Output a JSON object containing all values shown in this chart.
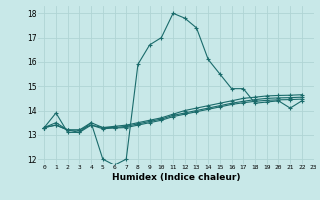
{
  "xlabel": "Humidex (Indice chaleur)",
  "ylabel": "",
  "background_color": "#c8e8e8",
  "grid_color": "#b0d4d4",
  "line_color": "#1a6b6b",
  "xlim": [
    -0.5,
    23
  ],
  "ylim": [
    11.8,
    18.3
  ],
  "yticks": [
    12,
    13,
    14,
    15,
    16,
    17,
    18
  ],
  "xticks": [
    0,
    1,
    2,
    3,
    4,
    5,
    6,
    7,
    8,
    9,
    10,
    11,
    12,
    13,
    14,
    15,
    16,
    17,
    18,
    19,
    20,
    21,
    22,
    23
  ],
  "lines": [
    [
      13.3,
      13.9,
      13.1,
      13.1,
      13.5,
      12.0,
      11.75,
      12.0,
      15.9,
      16.7,
      17.0,
      18.0,
      17.8,
      17.4,
      16.1,
      15.5,
      14.9,
      14.9,
      14.3,
      14.35,
      14.4,
      14.1,
      14.4
    ],
    [
      13.3,
      13.5,
      13.2,
      13.2,
      13.5,
      13.3,
      13.35,
      13.4,
      13.5,
      13.6,
      13.7,
      13.85,
      14.0,
      14.1,
      14.2,
      14.3,
      14.4,
      14.5,
      14.55,
      14.6,
      14.62,
      14.63,
      14.65
    ],
    [
      13.3,
      13.4,
      13.2,
      13.2,
      13.4,
      13.3,
      13.3,
      13.35,
      13.45,
      13.55,
      13.65,
      13.8,
      13.9,
      14.0,
      14.1,
      14.2,
      14.3,
      14.38,
      14.45,
      14.5,
      14.52,
      14.53,
      14.55
    ],
    [
      13.3,
      13.4,
      13.2,
      13.1,
      13.4,
      13.25,
      13.28,
      13.3,
      13.4,
      13.5,
      13.6,
      13.75,
      13.85,
      13.95,
      14.05,
      14.15,
      14.25,
      14.32,
      14.38,
      14.42,
      14.44,
      14.45,
      14.47
    ]
  ]
}
